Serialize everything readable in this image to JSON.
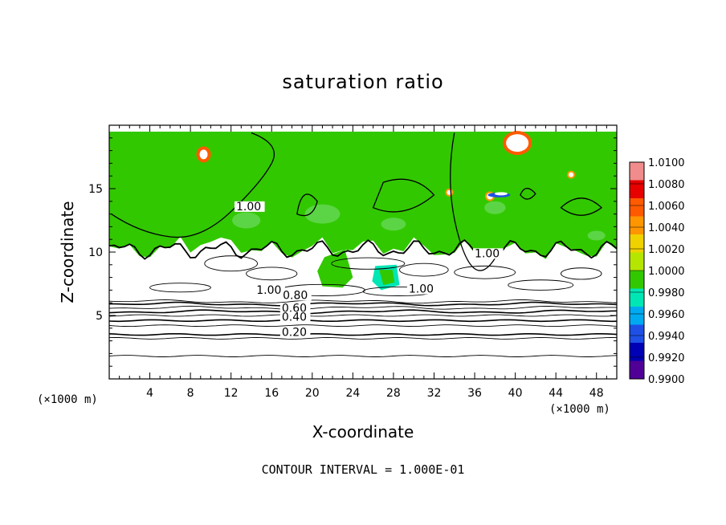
{
  "chart_data": {
    "type": "heatmap",
    "title": "saturation ratio",
    "xlabel": "X-coordinate",
    "ylabel": "Z-coordinate",
    "x_units": "(×1000 m)",
    "y_units": "(×1000 m)",
    "xlim": [
      0,
      50
    ],
    "ylim": [
      0,
      20
    ],
    "x_ticks": [
      4,
      8,
      12,
      16,
      20,
      24,
      28,
      32,
      36,
      40,
      44,
      48
    ],
    "y_ticks": [
      5,
      10,
      15
    ],
    "note": "CONTOUR INTERVAL = 1.000E-01",
    "colorbar": {
      "labels": [
        "1.0100",
        "1.0080",
        "1.0060",
        "1.0040",
        "1.0020",
        "1.0000",
        "0.9980",
        "0.9960",
        "0.9940",
        "0.9920",
        "0.9900"
      ],
      "colors": [
        "#f08c8c",
        "#e60000",
        "#ff5a00",
        "#ff9600",
        "#f0d200",
        "#b4e600",
        "#32c800",
        "#00e6b4",
        "#00aaf0",
        "#1e50e6",
        "#0000b4",
        "#500096"
      ]
    },
    "regions": [
      {
        "name": "saturated-cloud-layer",
        "color": "#32c800",
        "x": [
          0,
          50
        ],
        "z_top_approx": 19.5,
        "z_base_approx": 10.2
      },
      {
        "name": "subsaturated-mixed-layer",
        "color": "#ffffff",
        "x": [
          0,
          50
        ],
        "z_approx": [
          6,
          10
        ]
      },
      {
        "name": "dry-lower-layer",
        "color": "#ffffff",
        "x": [
          0,
          50
        ],
        "z_approx": [
          0,
          6
        ]
      }
    ],
    "contour_labels": [
      {
        "text": "1.00",
        "x": 12.5,
        "z": 13.3
      },
      {
        "text": "1.00",
        "x": 36.0,
        "z": 9.6
      },
      {
        "text": "1.00",
        "x": 14.5,
        "z": 6.7
      },
      {
        "text": "1.00",
        "x": 29.5,
        "z": 6.8
      },
      {
        "text": "0.80",
        "x": 17.1,
        "z": 6.3
      },
      {
        "text": "0.60",
        "x": 17.0,
        "z": 5.3
      },
      {
        "text": "0.40",
        "x": 17.0,
        "z": 4.6
      },
      {
        "text": "0.20",
        "x": 17.0,
        "z": 3.4
      }
    ]
  }
}
